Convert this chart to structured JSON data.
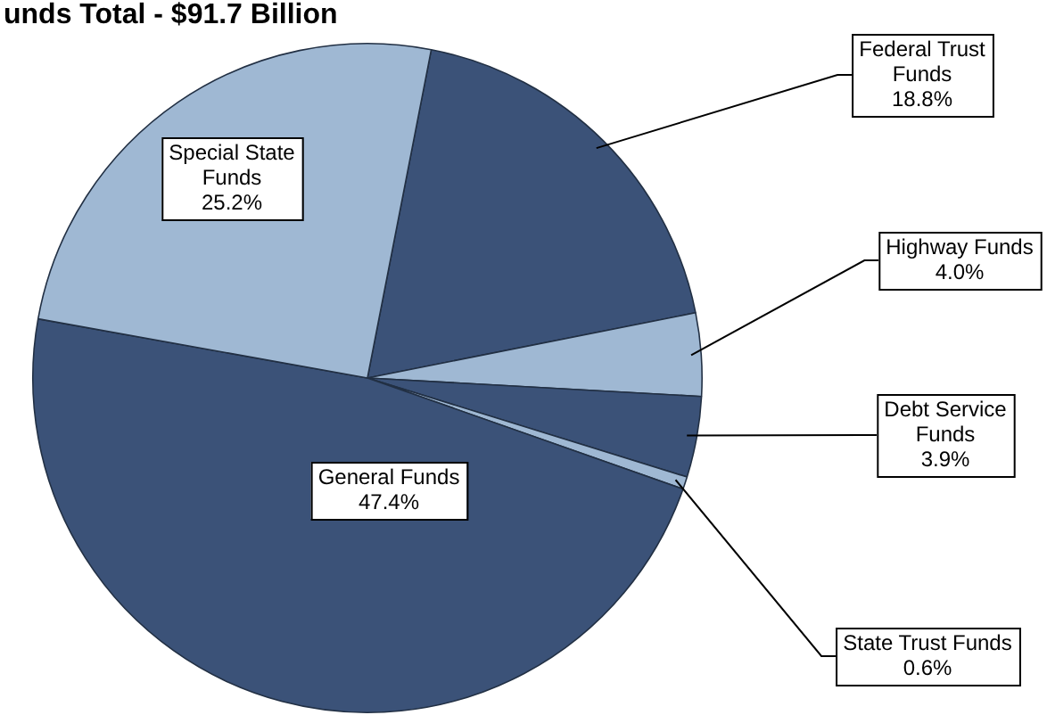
{
  "chart_data": {
    "type": "pie",
    "title": "unds Total - $91.7 Billion",
    "categories": [
      "Federal Trust Funds",
      "Highway Funds",
      "Debt Service Funds",
      "State Trust Funds",
      "General Funds",
      "Special State Funds"
    ],
    "values": [
      18.8,
      4.0,
      3.9,
      0.6,
      47.4,
      25.2
    ],
    "colors": [
      "#3b5278",
      "#9fb8d3",
      "#3b5278",
      "#9fb8d3",
      "#3b5278",
      "#9fb8d3"
    ],
    "value_labels": [
      "18.8%",
      "4.0%",
      "3.9%",
      "0.6%",
      "47.4%",
      "25.2%"
    ],
    "legend": false
  }
}
